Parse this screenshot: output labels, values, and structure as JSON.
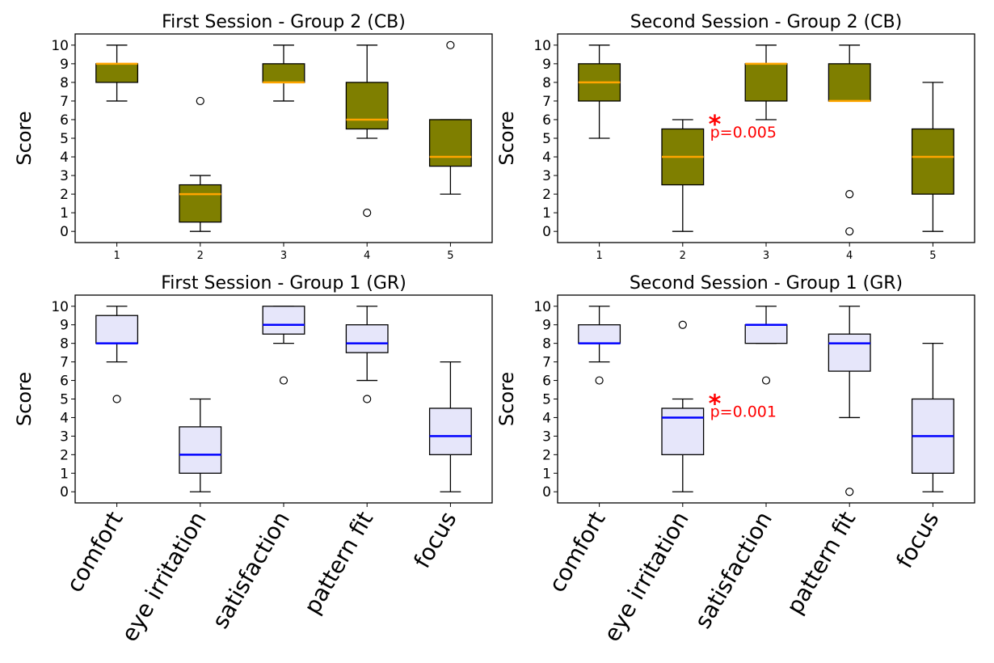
{
  "chart_data": [
    {
      "type": "box",
      "title": "First Session - Group 2 (CB)",
      "ylabel": "Score",
      "xlabel": "",
      "ylim": [
        -0.6,
        10.6
      ],
      "yticks": [
        "0",
        "1",
        "2",
        "3",
        "4",
        "5",
        "6",
        "7",
        "8",
        "9",
        "10"
      ],
      "categories": [
        "1",
        "2",
        "3",
        "4",
        "5"
      ],
      "box_fill": "#7f7f00",
      "median_color": "#ffa500",
      "boxes": [
        {
          "whisker_low": 7,
          "q1": 8,
          "median": 9,
          "q3": 9,
          "whisker_high": 10,
          "outliers": []
        },
        {
          "whisker_low": 0,
          "q1": 0.5,
          "median": 2,
          "q3": 2.5,
          "whisker_high": 3,
          "outliers": [
            7
          ]
        },
        {
          "whisker_low": 7,
          "q1": 8,
          "median": 8,
          "q3": 9,
          "whisker_high": 10,
          "outliers": []
        },
        {
          "whisker_low": 5,
          "q1": 5.5,
          "median": 6,
          "q3": 8,
          "whisker_high": 10,
          "outliers": [
            1
          ]
        },
        {
          "whisker_low": 2,
          "q1": 3.5,
          "median": 4,
          "q3": 6,
          "whisker_high": 6,
          "outliers": [
            10
          ]
        }
      ],
      "annotation": null
    },
    {
      "type": "box",
      "title": "Second Session - Group 2 (CB)",
      "ylabel": "Score",
      "xlabel": "",
      "ylim": [
        -0.6,
        10.6
      ],
      "yticks": [
        "0",
        "1",
        "2",
        "3",
        "4",
        "5",
        "6",
        "7",
        "8",
        "9",
        "10"
      ],
      "categories": [
        "1",
        "2",
        "3",
        "4",
        "5"
      ],
      "box_fill": "#7f7f00",
      "median_color": "#ffa500",
      "boxes": [
        {
          "whisker_low": 5,
          "q1": 7,
          "median": 8,
          "q3": 9,
          "whisker_high": 10,
          "outliers": []
        },
        {
          "whisker_low": 0,
          "q1": 2.5,
          "median": 4,
          "q3": 5.5,
          "whisker_high": 6,
          "outliers": []
        },
        {
          "whisker_low": 6,
          "q1": 7,
          "median": 9,
          "q3": 9,
          "whisker_high": 10,
          "outliers": []
        },
        {
          "whisker_low": 7,
          "q1": 7,
          "median": 7,
          "q3": 9,
          "whisker_high": 10,
          "outliers": [
            2,
            0
          ]
        },
        {
          "whisker_low": 0,
          "q1": 2,
          "median": 4,
          "q3": 5.5,
          "whisker_high": 8,
          "outliers": []
        }
      ],
      "annotation": {
        "star": "*",
        "text": "p=0.005",
        "category_index": 1,
        "value": 6,
        "color": "#ff0000"
      }
    },
    {
      "type": "box",
      "title": "First Session - Group 1 (GR)",
      "ylabel": "Score",
      "xlabel": "",
      "ylim": [
        -0.6,
        10.6
      ],
      "yticks": [
        "0",
        "1",
        "2",
        "3",
        "4",
        "5",
        "6",
        "7",
        "8",
        "9",
        "10"
      ],
      "categories": [
        "comfort",
        "eye irritation",
        "satisfaction",
        "pattern fit",
        "focus"
      ],
      "box_fill": "#e6e6fa",
      "median_color": "#0000ff",
      "boxes": [
        {
          "whisker_low": 7,
          "q1": 8,
          "median": 8,
          "q3": 9.5,
          "whisker_high": 10,
          "outliers": [
            5
          ]
        },
        {
          "whisker_low": 0,
          "q1": 1,
          "median": 2,
          "q3": 3.5,
          "whisker_high": 5,
          "outliers": []
        },
        {
          "whisker_low": 8,
          "q1": 8.5,
          "median": 9,
          "q3": 10,
          "whisker_high": 10,
          "outliers": [
            6
          ]
        },
        {
          "whisker_low": 6,
          "q1": 7.5,
          "median": 8,
          "q3": 9,
          "whisker_high": 10,
          "outliers": [
            5
          ]
        },
        {
          "whisker_low": 0,
          "q1": 2,
          "median": 3,
          "q3": 4.5,
          "whisker_high": 7,
          "outliers": []
        }
      ],
      "annotation": null
    },
    {
      "type": "box",
      "title": "Second Session - Group 1 (GR)",
      "ylabel": "Score",
      "xlabel": "",
      "ylim": [
        -0.6,
        10.6
      ],
      "yticks": [
        "0",
        "1",
        "2",
        "3",
        "4",
        "5",
        "6",
        "7",
        "8",
        "9",
        "10"
      ],
      "categories": [
        "comfort",
        "eye irritation",
        "satisfaction",
        "pattern fit",
        "focus"
      ],
      "box_fill": "#e6e6fa",
      "median_color": "#0000ff",
      "boxes": [
        {
          "whisker_low": 7,
          "q1": 8,
          "median": 8,
          "q3": 9,
          "whisker_high": 10,
          "outliers": [
            6
          ]
        },
        {
          "whisker_low": 0,
          "q1": 2,
          "median": 4,
          "q3": 4.5,
          "whisker_high": 5,
          "outliers": [
            9
          ]
        },
        {
          "whisker_low": 8,
          "q1": 8,
          "median": 9,
          "q3": 9,
          "whisker_high": 10,
          "outliers": [
            6
          ]
        },
        {
          "whisker_low": 4,
          "q1": 6.5,
          "median": 8,
          "q3": 8.5,
          "whisker_high": 10,
          "outliers": [
            0
          ]
        },
        {
          "whisker_low": 0,
          "q1": 1,
          "median": 3,
          "q3": 5,
          "whisker_high": 8,
          "outliers": []
        }
      ],
      "annotation": {
        "star": "*",
        "text": "p=0.001",
        "category_index": 1,
        "value": 5,
        "color": "#ff0000"
      }
    }
  ]
}
